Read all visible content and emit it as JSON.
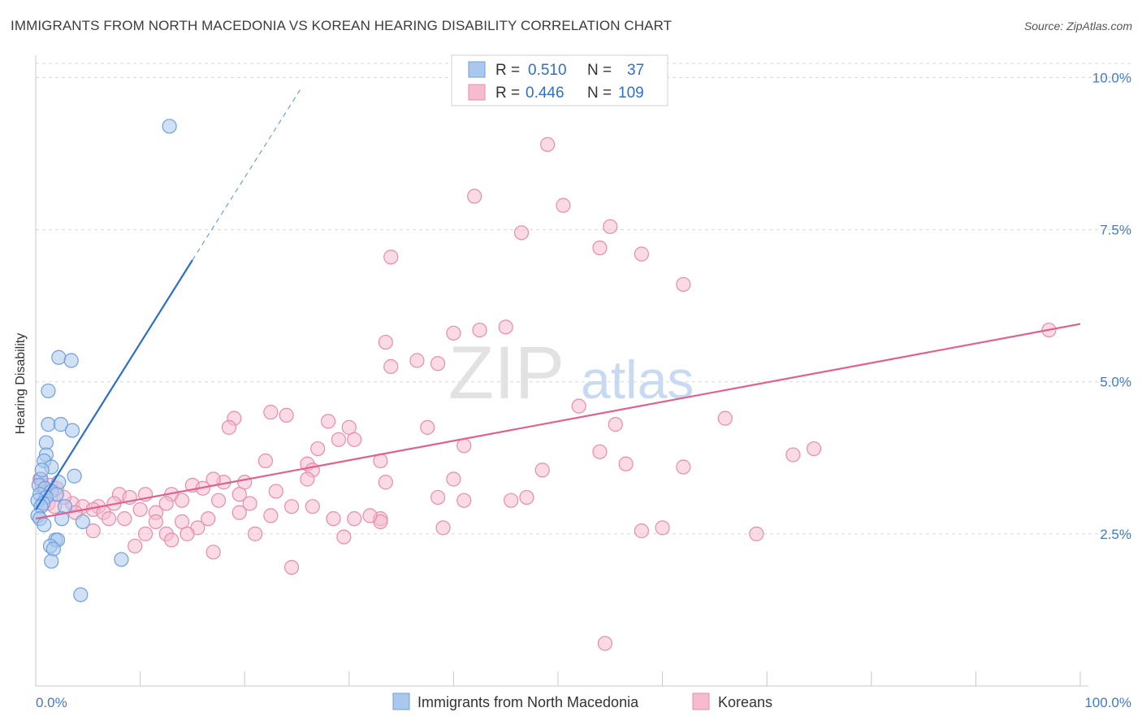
{
  "title": "IMMIGRANTS FROM NORTH MACEDONIA VS KOREAN HEARING DISABILITY CORRELATION CHART",
  "source": "Source: ZipAtlas.com",
  "watermark": {
    "zip": "ZIP",
    "atlas": "atlas"
  },
  "colors": {
    "blue_fill": "#aac8ee",
    "blue_stroke": "#6f9fdc",
    "blue_line": "#2a6fcc",
    "pink_fill": "#f5bcd0",
    "pink_stroke": "#e88cab",
    "pink_line": "#e0608e",
    "axis_text": "#3f7ad1",
    "grid": "#d8d8d8"
  },
  "chart_data": {
    "type": "scatter",
    "title": "IMMIGRANTS FROM NORTH MACEDONIA VS KOREAN HEARING DISABILITY CORRELATION CHART",
    "xlabel": "",
    "ylabel": "Hearing Disability",
    "xlim": [
      0,
      100
    ],
    "ylim": [
      0,
      10.5
    ],
    "x_tick_labels": {
      "min": "0.0%",
      "max": "100.0%"
    },
    "y_ticks": [
      {
        "value": 2.5,
        "label": "2.5%"
      },
      {
        "value": 5.0,
        "label": "5.0%"
      },
      {
        "value": 7.5,
        "label": "7.5%"
      },
      {
        "value": 10.0,
        "label": "10.0%"
      }
    ],
    "legend": {
      "position": "top-center",
      "entries": [
        {
          "r_label": "R =",
          "r_value": "0.510",
          "n_label": "N =",
          "n_value": "37"
        },
        {
          "r_label": "R =",
          "r_value": "0.446",
          "n_label": "N =",
          "n_value": "109"
        }
      ]
    },
    "bottom_legend": [
      "Immigrants from North Macedonia",
      "Koreans"
    ],
    "series": [
      {
        "name": "Immigrants from North Macedonia",
        "color": "#aac8ee",
        "trend": {
          "x0": 0,
          "y0": 2.9,
          "x1": 15,
          "y1": 7.0,
          "dash_to_x": 25.5,
          "dash_to_y": 9.85
        },
        "points": [
          [
            12.8,
            9.2
          ],
          [
            2.2,
            5.4
          ],
          [
            3.4,
            5.35
          ],
          [
            1.2,
            4.85
          ],
          [
            1.2,
            4.3
          ],
          [
            2.4,
            4.3
          ],
          [
            3.5,
            4.2
          ],
          [
            1.0,
            4.0
          ],
          [
            1.0,
            3.8
          ],
          [
            0.8,
            3.7
          ],
          [
            1.5,
            3.6
          ],
          [
            3.7,
            3.45
          ],
          [
            0.5,
            3.4
          ],
          [
            2.2,
            3.35
          ],
          [
            0.3,
            3.3
          ],
          [
            0.9,
            3.25
          ],
          [
            1.5,
            3.2
          ],
          [
            0.4,
            3.15
          ],
          [
            2.0,
            3.15
          ],
          [
            1.0,
            3.1
          ],
          [
            0.2,
            3.05
          ],
          [
            0.7,
            3.0
          ],
          [
            2.8,
            2.95
          ],
          [
            0.5,
            2.95
          ],
          [
            0.2,
            2.8
          ],
          [
            0.4,
            2.75
          ],
          [
            2.5,
            2.75
          ],
          [
            4.5,
            2.7
          ],
          [
            0.8,
            2.65
          ],
          [
            1.9,
            2.4
          ],
          [
            2.1,
            2.4
          ],
          [
            1.4,
            2.3
          ],
          [
            1.7,
            2.25
          ],
          [
            1.5,
            2.05
          ],
          [
            8.2,
            2.08
          ],
          [
            4.3,
            1.5
          ],
          [
            0.6,
            3.55
          ]
        ]
      },
      {
        "name": "Koreans",
        "color": "#f5bcd0",
        "trend": {
          "x0": 0,
          "y0": 2.75,
          "x1": 100,
          "y1": 5.95
        },
        "points": [
          [
            49.0,
            8.9
          ],
          [
            42.0,
            8.05
          ],
          [
            50.5,
            7.9
          ],
          [
            46.5,
            7.45
          ],
          [
            55.0,
            7.55
          ],
          [
            54.0,
            7.2
          ],
          [
            34.0,
            7.05
          ],
          [
            58.0,
            7.1
          ],
          [
            62.0,
            6.6
          ],
          [
            97.0,
            5.85
          ],
          [
            42.5,
            5.85
          ],
          [
            40.0,
            5.8
          ],
          [
            45.0,
            5.9
          ],
          [
            33.5,
            5.65
          ],
          [
            34.0,
            5.25
          ],
          [
            36.5,
            5.35
          ],
          [
            38.5,
            5.3
          ],
          [
            52.0,
            4.6
          ],
          [
            22.5,
            4.5
          ],
          [
            19.0,
            4.4
          ],
          [
            24.0,
            4.45
          ],
          [
            28.0,
            4.35
          ],
          [
            30.0,
            4.25
          ],
          [
            37.5,
            4.25
          ],
          [
            55.5,
            4.3
          ],
          [
            66.0,
            4.4
          ],
          [
            29.0,
            4.05
          ],
          [
            30.5,
            4.05
          ],
          [
            27.0,
            3.9
          ],
          [
            41.0,
            3.95
          ],
          [
            18.5,
            4.25
          ],
          [
            54.0,
            3.85
          ],
          [
            72.5,
            3.8
          ],
          [
            74.5,
            3.9
          ],
          [
            22.0,
            3.7
          ],
          [
            26.0,
            3.65
          ],
          [
            26.5,
            3.55
          ],
          [
            48.5,
            3.55
          ],
          [
            56.5,
            3.65
          ],
          [
            62.0,
            3.6
          ],
          [
            33.0,
            3.7
          ],
          [
            33.5,
            3.35
          ],
          [
            40.0,
            3.4
          ],
          [
            20.0,
            3.35
          ],
          [
            26.0,
            3.4
          ],
          [
            18.0,
            3.35
          ],
          [
            15.0,
            3.3
          ],
          [
            16.0,
            3.25
          ],
          [
            19.5,
            3.15
          ],
          [
            23.0,
            3.2
          ],
          [
            41.0,
            3.05
          ],
          [
            45.5,
            3.05
          ],
          [
            38.5,
            3.1
          ],
          [
            47.0,
            3.1
          ],
          [
            13.0,
            3.15
          ],
          [
            10.5,
            3.15
          ],
          [
            12.5,
            3.0
          ],
          [
            8.0,
            3.15
          ],
          [
            9.0,
            3.1
          ],
          [
            7.5,
            3.0
          ],
          [
            20.5,
            3.0
          ],
          [
            14.0,
            3.05
          ],
          [
            17.5,
            3.05
          ],
          [
            10.0,
            2.9
          ],
          [
            6.0,
            2.95
          ],
          [
            3.5,
            3.0
          ],
          [
            4.5,
            2.95
          ],
          [
            5.5,
            2.9
          ],
          [
            6.5,
            2.85
          ],
          [
            3.8,
            2.85
          ],
          [
            2.7,
            3.1
          ],
          [
            1.4,
            3.3
          ],
          [
            1.2,
            3.0
          ],
          [
            0.4,
            3.4
          ],
          [
            0.6,
            3.3
          ],
          [
            1.8,
            2.95
          ],
          [
            11.5,
            2.85
          ],
          [
            14.0,
            2.7
          ],
          [
            8.5,
            2.75
          ],
          [
            7.0,
            2.75
          ],
          [
            24.5,
            2.95
          ],
          [
            26.5,
            2.95
          ],
          [
            16.5,
            2.75
          ],
          [
            11.5,
            2.7
          ],
          [
            33.0,
            2.75
          ],
          [
            30.5,
            2.75
          ],
          [
            28.5,
            2.75
          ],
          [
            33.0,
            2.7
          ],
          [
            32.0,
            2.8
          ],
          [
            22.5,
            2.8
          ],
          [
            19.5,
            2.85
          ],
          [
            39.0,
            2.6
          ],
          [
            60.0,
            2.6
          ],
          [
            58.0,
            2.55
          ],
          [
            69.0,
            2.5
          ],
          [
            15.5,
            2.6
          ],
          [
            12.5,
            2.5
          ],
          [
            5.5,
            2.55
          ],
          [
            10.5,
            2.5
          ],
          [
            21.0,
            2.5
          ],
          [
            14.5,
            2.5
          ],
          [
            13.0,
            2.4
          ],
          [
            29.5,
            2.45
          ],
          [
            17.0,
            2.2
          ],
          [
            24.5,
            1.95
          ],
          [
            54.5,
            0.7
          ],
          [
            2.0,
            3.25
          ],
          [
            9.5,
            2.3
          ],
          [
            17.0,
            3.4
          ]
        ]
      }
    ]
  }
}
